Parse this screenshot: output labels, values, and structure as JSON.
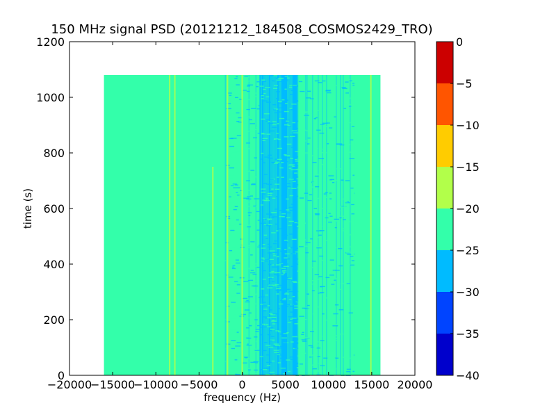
{
  "chart_data": {
    "type": "heatmap",
    "title": "150 MHz signal PSD (20121212_184508_COSMOS2429_TRO)",
    "xlabel": "frequency (Hz)",
    "ylabel": "time (s)",
    "xlim": [
      -20000,
      20000
    ],
    "ylim": [
      0,
      1200
    ],
    "x_ticks": [
      -20000,
      -15000,
      -10000,
      -5000,
      0,
      5000,
      10000,
      15000,
      20000
    ],
    "x_tick_labels": [
      "−20000",
      "−15000",
      "−10000",
      "−5000",
      "0",
      "5000",
      "10000",
      "15000",
      "20000"
    ],
    "y_ticks": [
      0,
      200,
      400,
      600,
      800,
      1000,
      1200
    ],
    "y_tick_labels": [
      "0",
      "200",
      "400",
      "600",
      "800",
      "1000",
      "1200"
    ],
    "data_extent": {
      "x": [
        -16000,
        16000
      ],
      "y": [
        0,
        1080
      ]
    },
    "background_level_range": [
      -25,
      -20
    ],
    "bands": [
      {
        "x": [
          -16000,
          -2000
        ],
        "level_range": [
          -25,
          -20
        ]
      },
      {
        "x": [
          -2000,
          2000
        ],
        "level_range": [
          -25,
          -20
        ],
        "note_range": [
          -30,
          -25
        ]
      },
      {
        "x": [
          2000,
          6500
        ],
        "level_range": [
          -30,
          -25
        ]
      },
      {
        "x": [
          6500,
          13000
        ],
        "level_range": [
          -25,
          -20
        ],
        "note_range": [
          -30,
          -25
        ]
      },
      {
        "x": [
          13000,
          16000
        ],
        "level_range": [
          -25,
          -20
        ]
      }
    ],
    "spectral_lines": [
      {
        "x": -8400,
        "y": [
          0,
          1080
        ],
        "level_range": [
          -20,
          -15
        ]
      },
      {
        "x": -7800,
        "y": [
          0,
          1080
        ],
        "level_range": [
          -20,
          -15
        ]
      },
      {
        "x": -3400,
        "y": [
          0,
          750
        ],
        "level_range": [
          -20,
          -15
        ]
      },
      {
        "x": -1700,
        "y": [
          0,
          1080
        ],
        "level_range": [
          -20,
          -15
        ]
      },
      {
        "x": 0,
        "y": [
          0,
          1080
        ],
        "level_range": [
          -20,
          -15
        ]
      },
      {
        "x": 14900,
        "y": [
          0,
          1080
        ],
        "level_range": [
          -20,
          -15
        ]
      }
    ],
    "colorbar": {
      "levels": [
        -40,
        -35,
        -30,
        -25,
        -20,
        -15,
        -10,
        -5,
        0
      ],
      "tick_labels": [
        "−40",
        "−35",
        "−30",
        "−25",
        "−20",
        "−15",
        "−10",
        "−5",
        "0"
      ],
      "colors": [
        "#0000cc",
        "#0044ff",
        "#00bbff",
        "#33ffaa",
        "#b2ff4a",
        "#ffcc00",
        "#ff5500",
        "#cc0000"
      ]
    },
    "grid": false
  }
}
